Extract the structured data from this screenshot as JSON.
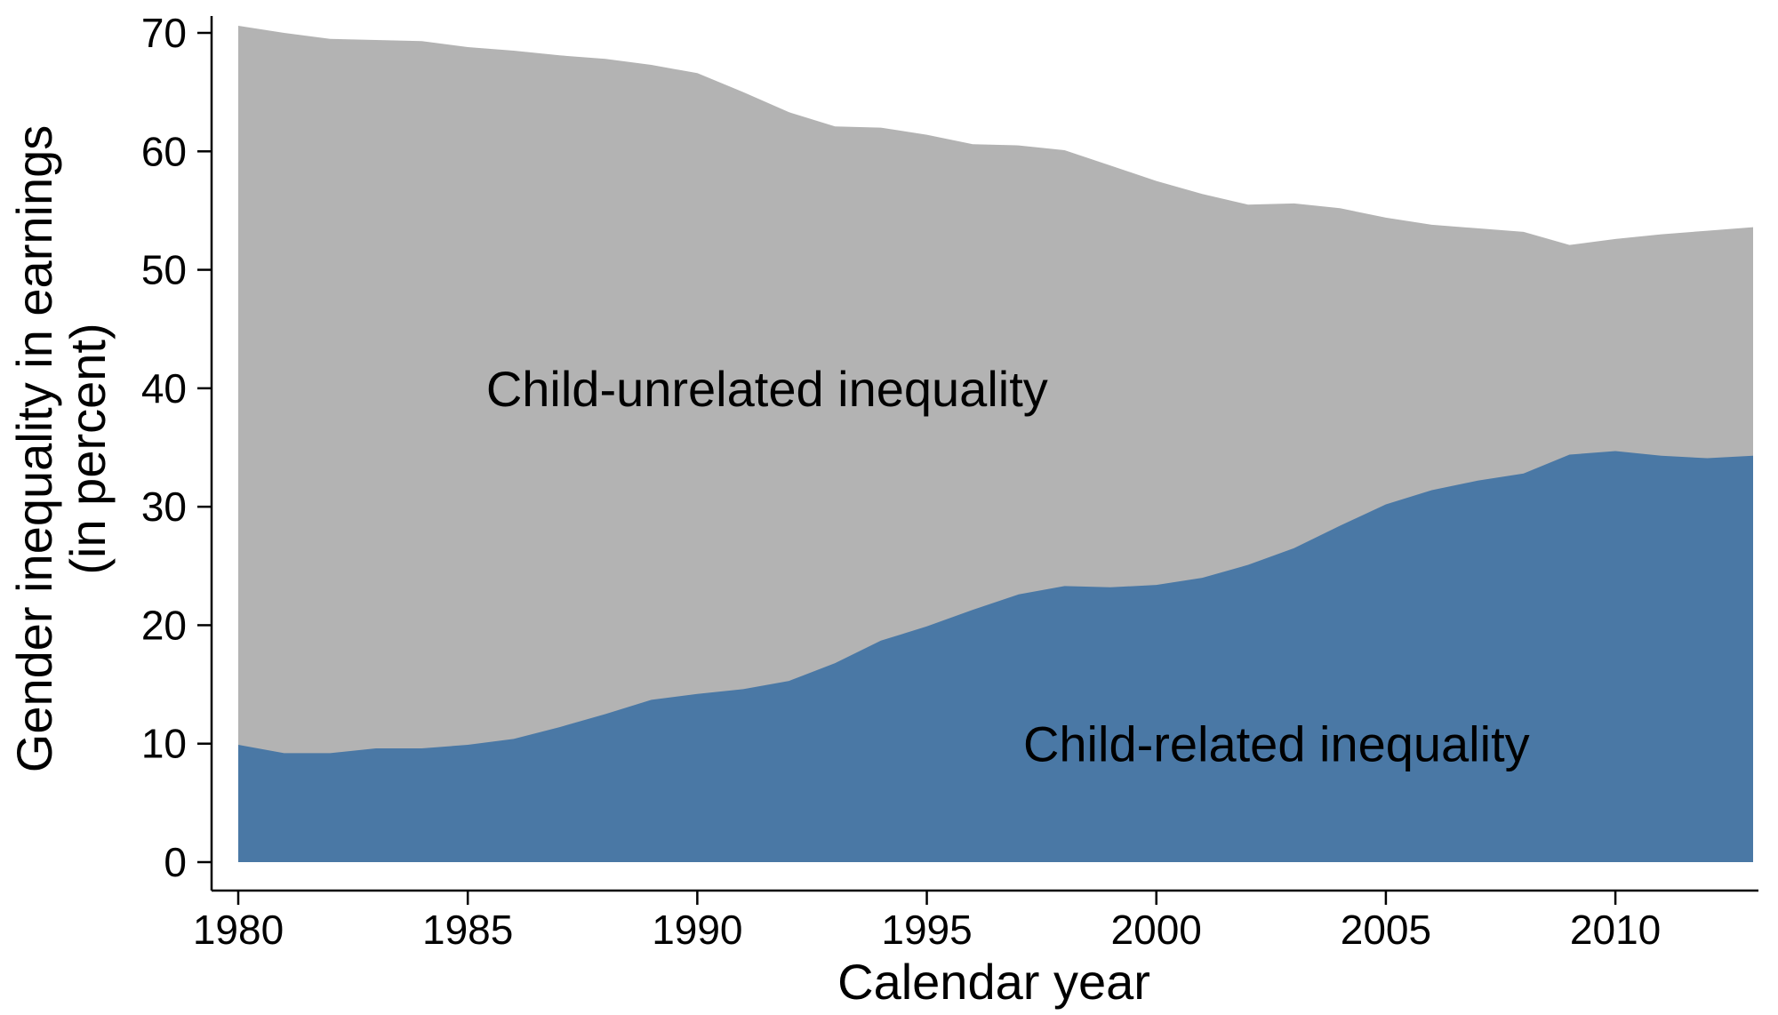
{
  "colors": {
    "total_area": "#b3b3b3",
    "child_related_area": "#4a78a5",
    "axis": "#000000",
    "background": "#ffffff"
  },
  "chart_data": {
    "type": "area",
    "title": "",
    "xlabel": "Calendar year",
    "ylabel_line1": "Gender inequality in earnings",
    "ylabel_line2": "(in percent)",
    "xlim": [
      1980,
      2013
    ],
    "ylim": [
      0,
      70
    ],
    "xticks": [
      1980,
      1985,
      1990,
      1995,
      2000,
      2005,
      2010
    ],
    "yticks": [
      0,
      10,
      20,
      30,
      40,
      50,
      60,
      70
    ],
    "grid": false,
    "legend": "none",
    "x": [
      1980,
      1981,
      1982,
      1983,
      1984,
      1985,
      1986,
      1987,
      1988,
      1989,
      1990,
      1991,
      1992,
      1993,
      1994,
      1995,
      1996,
      1997,
      1998,
      1999,
      2000,
      2001,
      2002,
      2003,
      2004,
      2005,
      2006,
      2007,
      2008,
      2009,
      2010,
      2011,
      2012,
      2013
    ],
    "series": [
      {
        "name": "Child-unrelated inequality",
        "role": "total gap (upper boundary of grey area)",
        "values": [
          70.6,
          70.0,
          69.5,
          69.4,
          69.3,
          68.8,
          68.5,
          68.1,
          67.8,
          67.3,
          66.6,
          65.0,
          63.3,
          62.1,
          62.0,
          61.4,
          60.6,
          60.5,
          60.1,
          58.8,
          57.5,
          56.4,
          55.5,
          55.6,
          55.2,
          54.4,
          53.8,
          53.5,
          53.2,
          52.1,
          52.6,
          53.0,
          53.3,
          53.6
        ]
      },
      {
        "name": "Child-related inequality",
        "role": "child-related component (blue area)",
        "values": [
          9.9,
          9.2,
          9.2,
          9.6,
          9.6,
          9.9,
          10.4,
          11.4,
          12.5,
          13.7,
          14.2,
          14.6,
          15.3,
          16.8,
          18.7,
          19.9,
          21.3,
          22.6,
          23.3,
          23.2,
          23.4,
          24.0,
          25.1,
          26.5,
          28.4,
          30.2,
          31.4,
          32.2,
          32.8,
          34.4,
          34.7,
          34.3,
          34.1,
          34.3
        ]
      }
    ],
    "annotations": {
      "unrelated": {
        "text": "Child-unrelated inequality",
        "x": 1985.4,
        "y": 40
      },
      "related": {
        "text": "Child-related inequality",
        "x": 1997.1,
        "y": 10
      }
    }
  }
}
